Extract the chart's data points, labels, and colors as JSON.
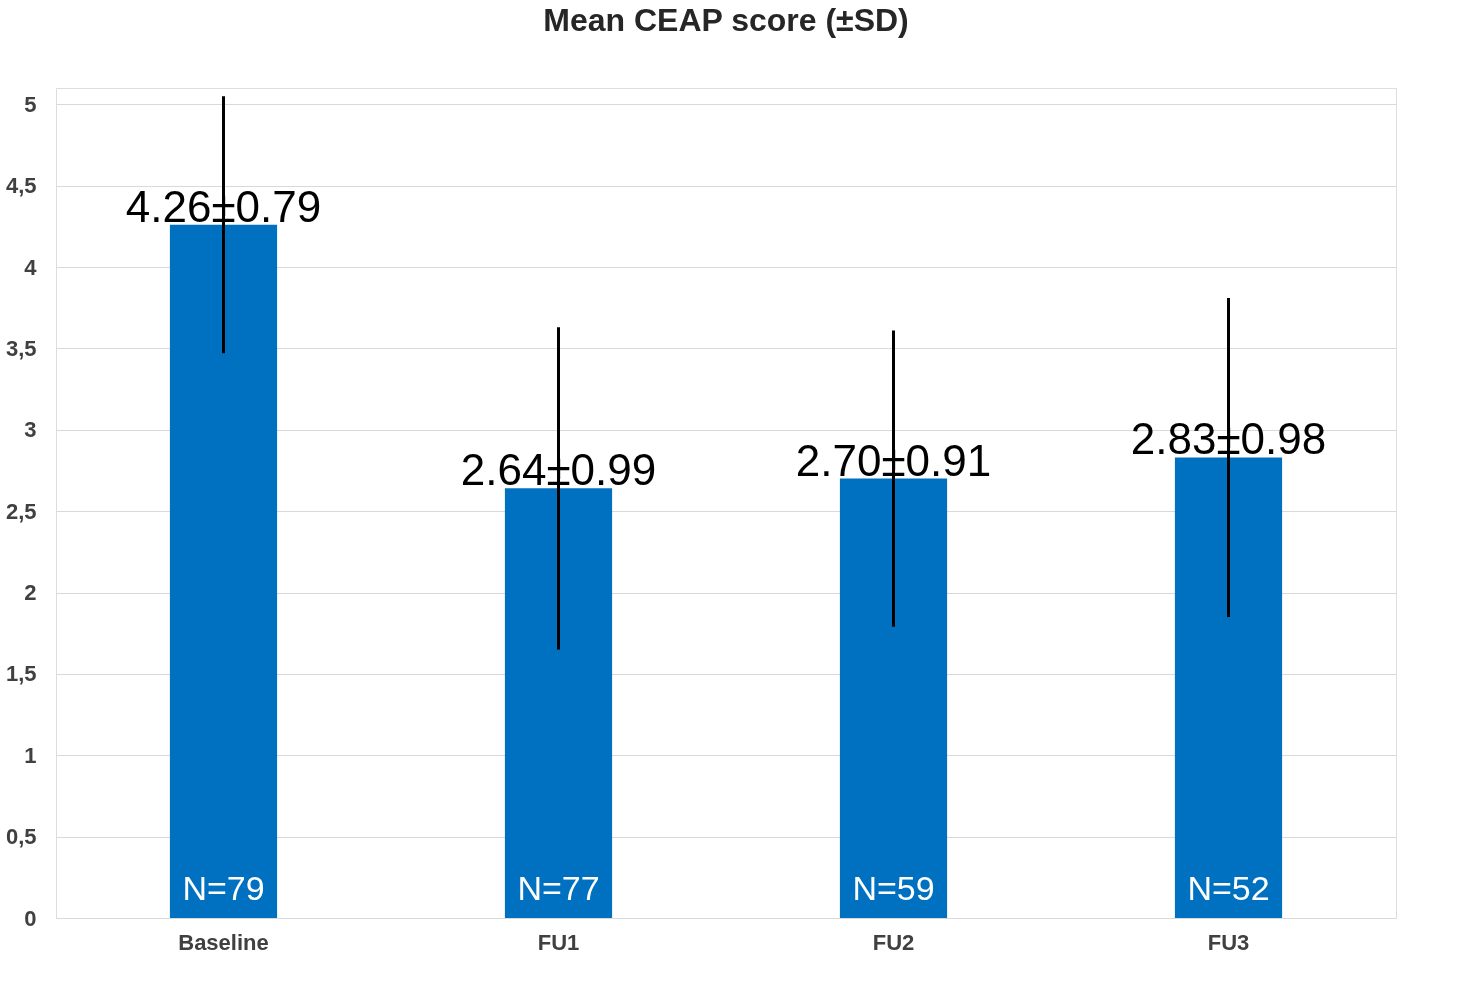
{
  "chart_data": {
    "type": "bar",
    "title": "Mean CEAP score (±SD)",
    "categories": [
      "Baseline",
      "FU1",
      "FU2",
      "FU3"
    ],
    "values": [
      4.26,
      2.64,
      2.7,
      2.83
    ],
    "errors": [
      0.79,
      0.99,
      0.91,
      0.98
    ],
    "value_labels": [
      "4.26±0.79",
      "2.64±0.99",
      "2.70±0.91",
      "2.83±0.98"
    ],
    "color": "#0070c0",
    "ylim": [
      0,
      5.1
    ],
    "yticks": [
      0,
      {
        "value": 0.5,
        "label": "0,5"
      },
      1,
      {
        "value": 1.5,
        "label": "1,5"
      },
      2,
      {
        "value": 2.5,
        "label": "2,5"
      },
      3,
      {
        "value": 3.5,
        "label": "3,5"
      },
      4,
      {
        "value": 4.5,
        "label": "4,5"
      },
      5
    ],
    "grid": "y",
    "annotations": [
      "N=79",
      "N=77",
      "N=59",
      "N=52"
    ]
  }
}
